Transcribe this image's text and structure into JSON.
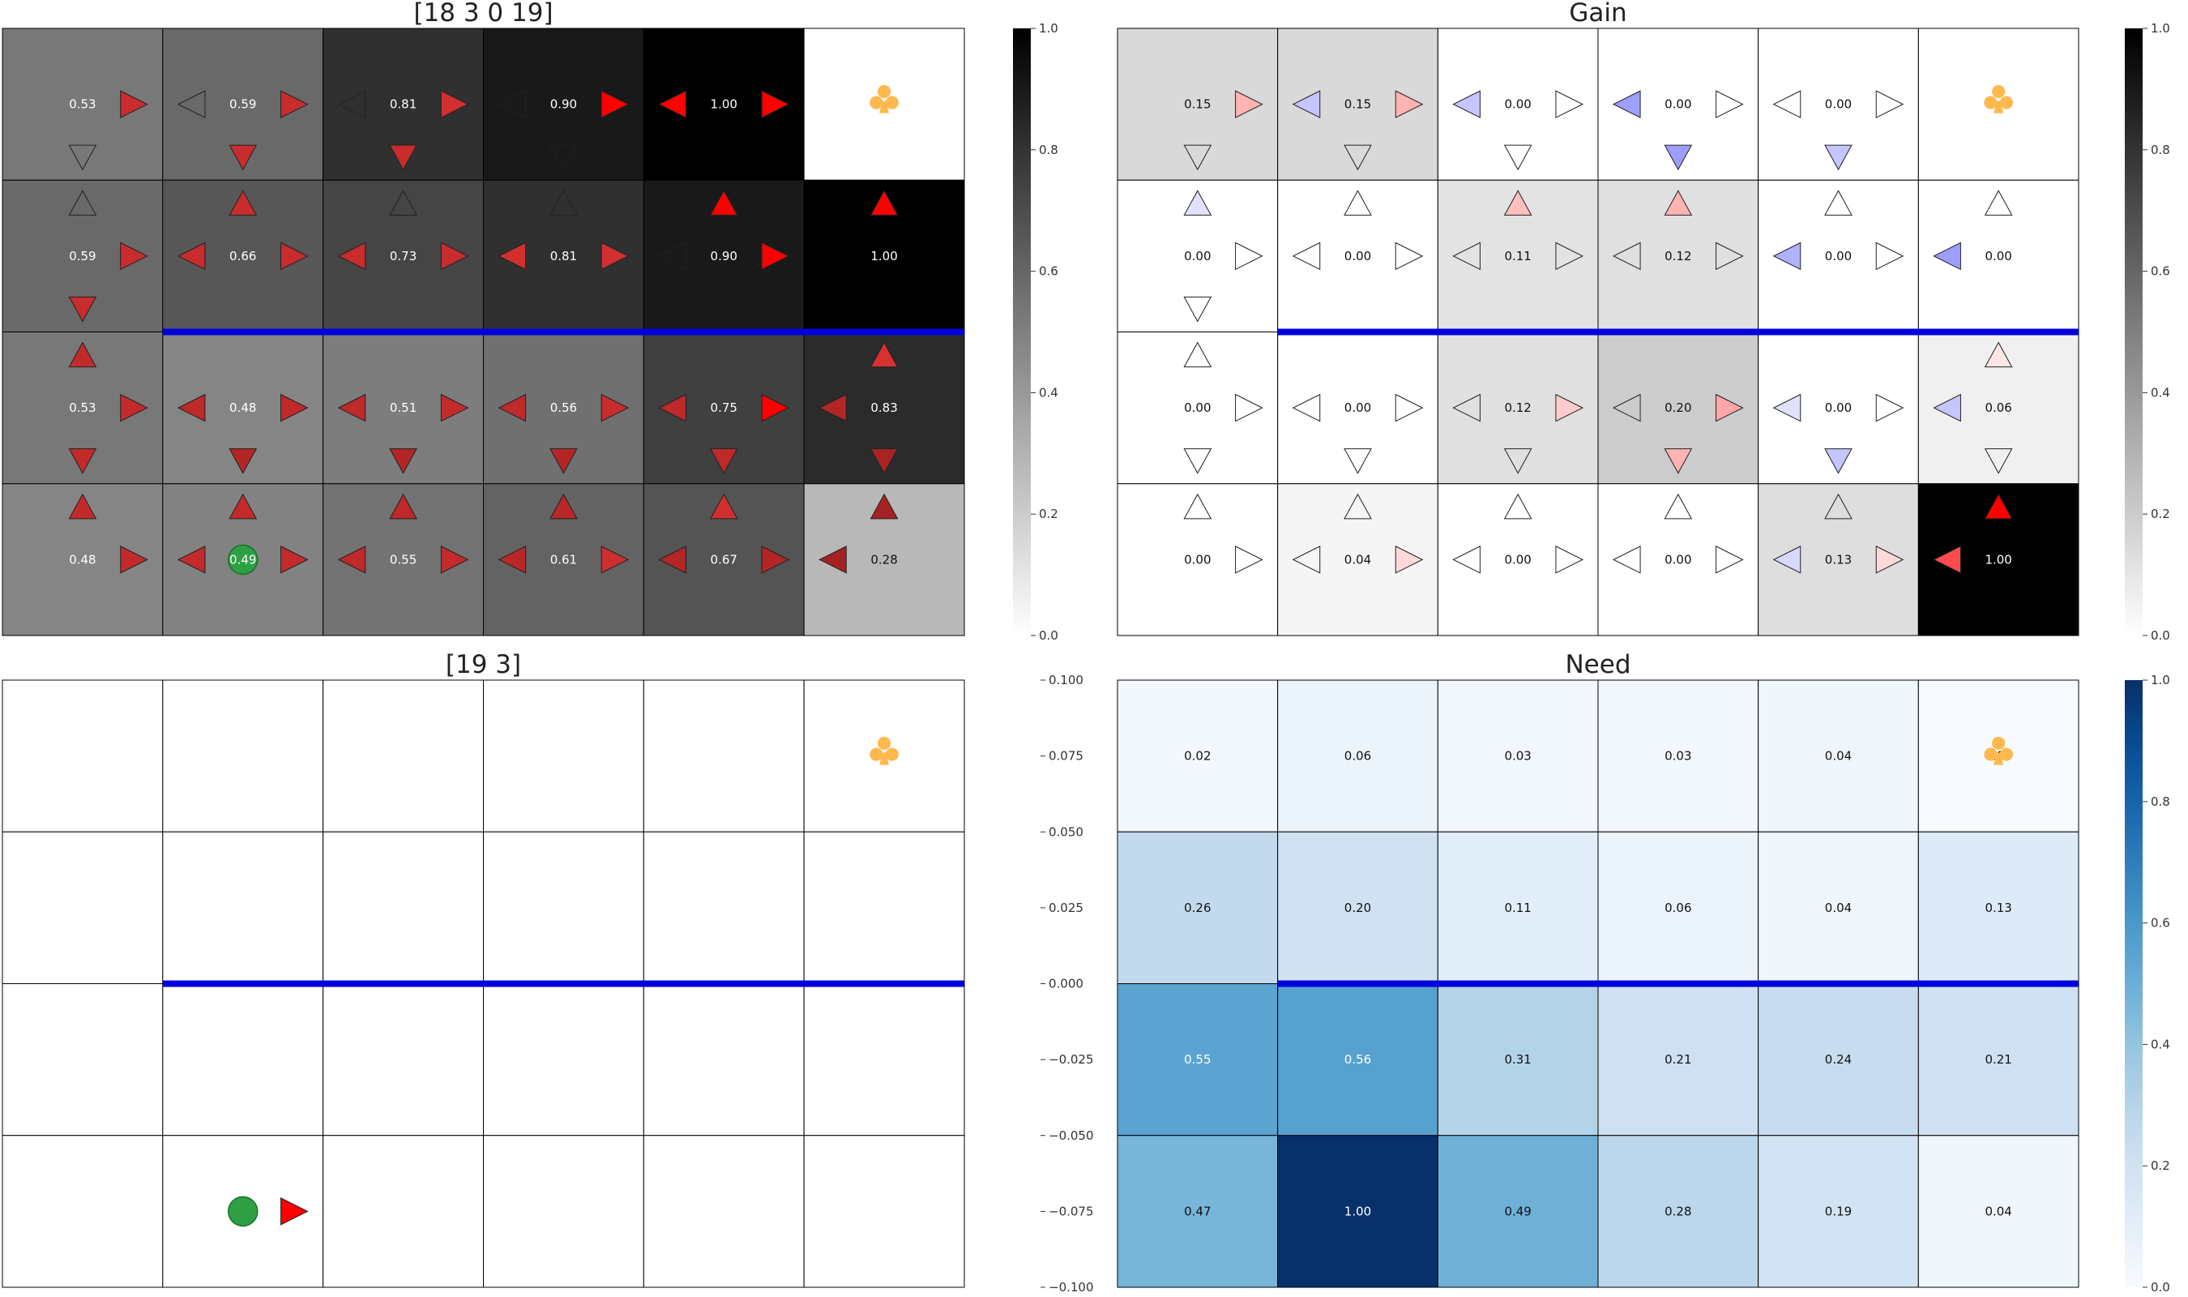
{
  "colors": {
    "wall": "#0000dd",
    "goal": "#ffb84d",
    "agent": "#2ea043",
    "grid_line": "#000000",
    "need_light": "#f7fbff",
    "need_dark": "#08306b"
  },
  "icons": {
    "goal": "club-icon",
    "agent": "agent-circle-icon",
    "arrow": "triangle-arrow-icon"
  },
  "chart_data": [
    {
      "id": "q",
      "type": "heatmap",
      "title": "[18 3 0 19]",
      "rows": 4,
      "cols": 6,
      "colormap": "gray_r",
      "values": [
        [
          0.53,
          0.59,
          0.81,
          0.9,
          1.0,
          0.0
        ],
        [
          0.59,
          0.66,
          0.73,
          0.81,
          0.9,
          1.0
        ],
        [
          0.53,
          0.48,
          0.51,
          0.56,
          0.75,
          0.83
        ],
        [
          0.48,
          0.49,
          0.55,
          0.61,
          0.67,
          0.28
        ]
      ],
      "arrows": [
        [
          {
            "up": null,
            "down": 0.0,
            "left": null,
            "right": 0.8
          },
          {
            "up": null,
            "down": 0.8,
            "left": 0.0,
            "right": 0.8
          },
          {
            "up": null,
            "down": 0.8,
            "left": 0.0,
            "right": 0.9
          },
          {
            "up": null,
            "down": 0.0,
            "left": 0.0,
            "right": 1.0
          },
          {
            "up": null,
            "down": null,
            "left": 1.0,
            "right": 1.0
          },
          null
        ],
        [
          {
            "up": 0.0,
            "down": 0.8,
            "left": null,
            "right": 0.8
          },
          {
            "up": 0.8,
            "down": null,
            "left": 0.8,
            "right": 0.8
          },
          {
            "up": 0.0,
            "down": null,
            "left": 0.8,
            "right": 0.8
          },
          {
            "up": 0.0,
            "down": null,
            "left": 0.9,
            "right": 0.9
          },
          {
            "up": 1.0,
            "down": null,
            "left": 0.0,
            "right": 1.0
          },
          {
            "up": 1.0,
            "down": null,
            "left": null,
            "right": null
          }
        ],
        [
          {
            "up": 0.75,
            "down": 0.75,
            "left": null,
            "right": 0.75
          },
          {
            "up": null,
            "down": 0.6,
            "left": 0.7,
            "right": 0.7
          },
          {
            "up": null,
            "down": 0.6,
            "left": 0.7,
            "right": 0.75
          },
          {
            "up": null,
            "down": 0.6,
            "left": 0.7,
            "right": 0.8
          },
          {
            "up": null,
            "down": 0.7,
            "left": 0.7,
            "right": 1.0
          },
          {
            "up": 0.95,
            "down": 0.5,
            "left": 0.6,
            "right": null
          }
        ],
        [
          {
            "up": 0.75,
            "down": null,
            "left": null,
            "right": 0.75
          },
          {
            "up": 0.75,
            "down": null,
            "left": 0.75,
            "right": 0.75
          },
          {
            "up": 0.7,
            "down": null,
            "left": 0.7,
            "right": 0.75
          },
          {
            "up": 0.65,
            "down": null,
            "left": 0.65,
            "right": 0.85
          },
          {
            "up": 0.9,
            "down": null,
            "left": 0.6,
            "right": 0.6
          },
          {
            "up": 0.45,
            "down": null,
            "left": 0.45,
            "right": null
          }
        ]
      ],
      "walls": [
        {
          "after_row": 1,
          "from_col": 1,
          "to_col": 6
        }
      ],
      "goal": [
        0,
        5
      ],
      "agent": [
        3,
        1
      ],
      "colorbar": {
        "min": 0.0,
        "max": 1.0,
        "ticks": [
          "0.0",
          "0.2",
          "0.4",
          "0.6",
          "0.8",
          "1.0"
        ]
      }
    },
    {
      "id": "gain",
      "type": "heatmap",
      "title": "Gain",
      "rows": 4,
      "cols": 6,
      "colormap": "gray_r",
      "values": [
        [
          0.15,
          0.15,
          0.0,
          0.0,
          0.0,
          null
        ],
        [
          0.0,
          0.0,
          0.11,
          0.12,
          0.0,
          0.0
        ],
        [
          0.0,
          0.0,
          0.12,
          0.2,
          0.0,
          0.06
        ],
        [
          0.0,
          0.04,
          0.0,
          0.0,
          0.13,
          1.0
        ]
      ],
      "arrows": [
        [
          {
            "up": null,
            "down": 0,
            "left": null,
            "right": 0.3
          },
          {
            "up": null,
            "down": 0,
            "left": -0.3,
            "right": 0.3
          },
          {
            "up": null,
            "down": 0,
            "left": -0.3,
            "right": 0
          },
          {
            "up": null,
            "down": -0.5,
            "left": -0.5,
            "right": 0
          },
          {
            "up": null,
            "down": -0.3,
            "left": 0,
            "right": 0
          },
          null
        ],
        [
          {
            "up": -0.15,
            "down": 0,
            "left": null,
            "right": 0
          },
          {
            "up": 0,
            "down": null,
            "left": 0,
            "right": 0
          },
          {
            "up": 0.25,
            "down": null,
            "left": 0,
            "right": 0
          },
          {
            "up": 0.3,
            "down": null,
            "left": 0,
            "right": 0
          },
          {
            "up": 0,
            "down": null,
            "left": -0.4,
            "right": 0
          },
          {
            "up": 0,
            "down": null,
            "left": -0.5,
            "right": null
          }
        ],
        [
          {
            "up": 0,
            "down": 0,
            "left": null,
            "right": 0
          },
          {
            "up": null,
            "down": 0,
            "left": 0,
            "right": 0
          },
          {
            "up": null,
            "down": 0,
            "left": 0,
            "right": 0.2
          },
          {
            "up": null,
            "down": 0.3,
            "left": 0,
            "right": 0.35
          },
          {
            "up": null,
            "down": -0.3,
            "left": -0.15,
            "right": 0
          },
          {
            "up": 0.1,
            "down": 0,
            "left": -0.3,
            "right": null
          }
        ],
        [
          {
            "up": 0,
            "down": null,
            "left": null,
            "right": 0
          },
          {
            "up": 0,
            "down": null,
            "left": 0,
            "right": 0.15
          },
          {
            "up": 0,
            "down": null,
            "left": 0,
            "right": 0
          },
          {
            "up": 0,
            "down": null,
            "left": 0,
            "right": 0
          },
          {
            "up": 0,
            "down": null,
            "left": -0.2,
            "right": 0.15
          },
          {
            "up": 1.0,
            "down": null,
            "left": 0.7,
            "right": null
          }
        ]
      ],
      "walls": [
        {
          "after_row": 1,
          "from_col": 1,
          "to_col": 6
        }
      ],
      "goal": [
        0,
        5
      ],
      "agent": null,
      "colorbar": {
        "min": 0.0,
        "max": 1.0,
        "ticks": [
          "0.0",
          "0.2",
          "0.4",
          "0.6",
          "0.8",
          "1.0"
        ]
      }
    },
    {
      "id": "rollout",
      "type": "heatmap",
      "title": "[19 3]",
      "rows": 4,
      "cols": 6,
      "colormap": "none",
      "values": null,
      "arrows": [
        [
          null,
          null,
          null,
          null,
          null,
          null
        ],
        [
          null,
          null,
          null,
          null,
          null,
          null
        ],
        [
          null,
          null,
          null,
          null,
          null,
          null
        ],
        [
          null,
          {
            "up": null,
            "down": null,
            "left": null,
            "right": 1.0
          },
          null,
          null,
          null,
          null
        ]
      ],
      "walls": [
        {
          "after_row": 1,
          "from_col": 1,
          "to_col": 6
        }
      ],
      "goal": [
        0,
        5
      ],
      "agent": [
        3,
        1
      ],
      "yaxis": {
        "ticks": [
          "0.100",
          "0.075",
          "0.050",
          "0.025",
          "0.000",
          "−0.025",
          "−0.050",
          "−0.075",
          "−0.100"
        ]
      }
    },
    {
      "id": "need",
      "type": "heatmap",
      "title": "Need",
      "rows": 4,
      "cols": 6,
      "colormap": "Blues",
      "values": [
        [
          0.02,
          0.06,
          0.03,
          0.03,
          0.04,
          0.0
        ],
        [
          0.26,
          0.2,
          0.11,
          0.06,
          0.04,
          0.13
        ],
        [
          0.55,
          0.56,
          0.31,
          0.21,
          0.24,
          0.21
        ],
        [
          0.47,
          1.0,
          0.49,
          0.28,
          0.19,
          0.04
        ]
      ],
      "arrows": null,
      "walls": [
        {
          "after_row": 1,
          "from_col": 1,
          "to_col": 6
        }
      ],
      "goal": [
        0,
        5
      ],
      "agent": null,
      "colorbar": {
        "min": 0.0,
        "max": 1.0,
        "ticks": [
          "0.0",
          "0.2",
          "0.4",
          "0.6",
          "0.8",
          "1.0"
        ]
      }
    }
  ]
}
